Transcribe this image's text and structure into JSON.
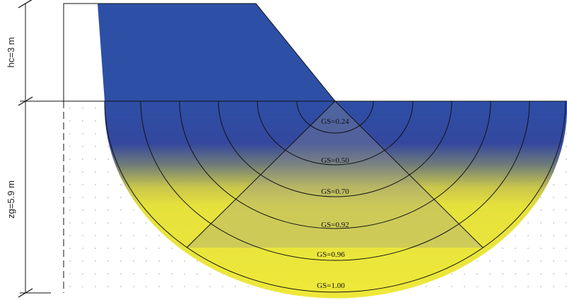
{
  "dimension_labels": {
    "hc": "hc=3 m",
    "zg": "zg=5.9 m"
  },
  "colors": {
    "blue": "#2d4fa6",
    "yellow": "#ebe63a",
    "outline": "#111111",
    "grid_dot": "#9a9a9a"
  },
  "contours": [
    {
      "label": "GS=0.24"
    },
    {
      "label": "GS=0.50"
    },
    {
      "label": "GS=0.70"
    },
    {
      "label": "GS=0.92"
    },
    {
      "label": "GS=0.96"
    },
    {
      "label": "GS=1.00"
    }
  ]
}
